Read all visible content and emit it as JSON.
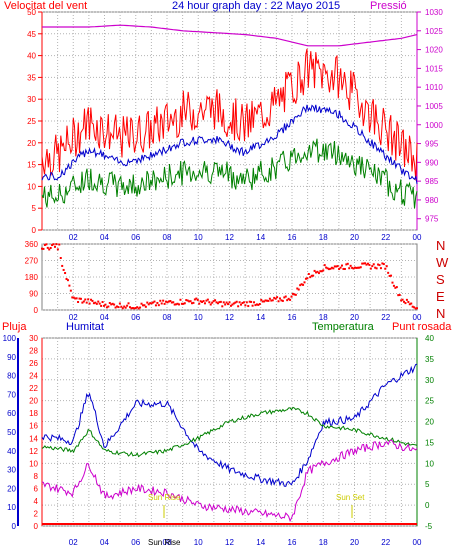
{
  "colors": {
    "wind_avg": "#ff0000",
    "wind_gust": "#008000",
    "wind_mean": "#0000cc",
    "pressure": "#cc00cc",
    "direction": "#ff0000",
    "rain": "#ff0000",
    "humidity": "#0000cc",
    "temperature": "#008000",
    "dewpoint": "#cc00cc",
    "sun": "#cccc00",
    "grid": "#b4b4b4"
  },
  "header": {
    "left": "Velocitat del vent",
    "center": "24 hour graph day : 22 Mayo 2015",
    "right": "Pressió"
  },
  "hour_labels": [
    "02",
    "04",
    "06",
    "08",
    "10",
    "12",
    "14",
    "16",
    "18",
    "20",
    "22",
    "00"
  ],
  "dir_letters": [
    "N",
    "W",
    "S",
    "E",
    "N"
  ],
  "bottom_header": {
    "rain": "Pluja",
    "humidity": "Humitat",
    "temperature": "Temperatura",
    "dewpoint": "Punt rosada"
  },
  "sun": {
    "rise_label": "Sun Rise",
    "set_label": "Sun Set",
    "bottom_label": "Sun Rise"
  },
  "chart_data": [
    {
      "type": "line",
      "title": "Velocitat del vent",
      "y_left_ticks": [
        "50",
        "45",
        "40",
        "35",
        "30",
        "25",
        "20",
        "15",
        "10",
        "5",
        "0"
      ],
      "y_left_range": [
        0,
        50
      ],
      "y_right_label": "Pressió",
      "y_right_ticks": [
        "1030",
        "1025",
        "1020",
        "1015",
        "1010",
        "1005",
        "1000",
        "995",
        "990",
        "985",
        "980",
        "975"
      ],
      "y_right_range": [
        972,
        1030
      ],
      "x_hours": [
        1,
        3,
        5,
        7,
        9,
        11,
        13,
        15,
        17,
        19,
        21,
        23,
        24
      ],
      "series": [
        {
          "name": "Velocitat del vent",
          "values": [
            14,
            22,
            18,
            20,
            24,
            25,
            21,
            26,
            34,
            32,
            24,
            16,
            13
          ]
        },
        {
          "name": "Pressió",
          "values": [
            1026,
            1026,
            1026.5,
            1026,
            1025,
            1024.5,
            1024,
            1023,
            1021,
            1021,
            1022,
            1023,
            1024
          ]
        }
      ]
    },
    {
      "type": "scatter",
      "y_ticks": [
        "360",
        "270",
        "180",
        "90",
        "0"
      ],
      "y_range": [
        0,
        360
      ],
      "x_hours": [
        1,
        2,
        4,
        6,
        8,
        10,
        12,
        14,
        16,
        17,
        18,
        20,
        22,
        23,
        24
      ],
      "values": [
        330,
        60,
        30,
        20,
        40,
        50,
        30,
        40,
        70,
        180,
        230,
        240,
        240,
        60,
        10
      ]
    },
    {
      "type": "line",
      "rain_ticks": [
        "100",
        "90",
        "80",
        "70",
        "60",
        "50",
        "40",
        "30",
        "20",
        "10",
        "0"
      ],
      "left2_ticks": [
        "30",
        "28",
        "26",
        "24",
        "22",
        "20",
        "18",
        "16",
        "14",
        "12",
        "10",
        "8",
        "6",
        "4",
        "2",
        "0"
      ],
      "right_ticks": [
        "40",
        "35",
        "30",
        "25",
        "20",
        "15",
        "10",
        "5",
        "0",
        "-5"
      ],
      "x_hours": [
        0,
        2,
        3,
        4,
        6,
        8,
        10,
        12,
        14,
        16,
        17,
        18,
        20,
        22,
        24
      ],
      "series": [
        {
          "name": "Humitat",
          "values": [
            48,
            45,
            72,
            42,
            65,
            65,
            40,
            30,
            25,
            22,
            35,
            55,
            57,
            75,
            85
          ]
        },
        {
          "name": "Temperatura",
          "values": [
            14,
            13,
            18,
            13,
            12,
            13,
            16,
            20,
            22,
            23,
            22,
            19,
            18,
            16,
            14
          ]
        },
        {
          "name": "Punt rosada",
          "values": [
            5,
            3,
            10,
            2,
            4,
            3,
            0,
            -1,
            -2,
            -3,
            8,
            10,
            13,
            15,
            13
          ]
        },
        {
          "name": "Pluja",
          "values": [
            0,
            0,
            0,
            0,
            0,
            0,
            0,
            0,
            0,
            0,
            0,
            0,
            0,
            0,
            0
          ]
        }
      ]
    }
  ]
}
